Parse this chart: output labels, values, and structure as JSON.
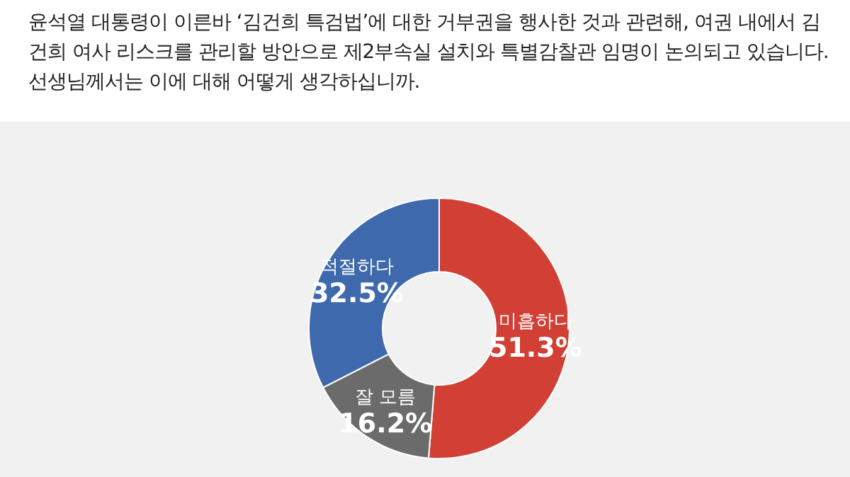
{
  "chart_data": {
    "type": "donut",
    "title": "윤석열 대통령이 이른바 ‘김건희 특검법’에 대한 거부권을 행사한 것과 관련해, 여권 내에서 김건희 여사 리스크를 관리할 방안으로 제2부속실 설치와 특별감찰관 임명이 논의되고 있습니다. 선생님께서는 이에 대해 어떻게 생각하십니까.",
    "categories": [
      "미흡하다",
      "잘 모름",
      "적절하다"
    ],
    "values": [
      51.3,
      16.2,
      32.5
    ],
    "value_labels": [
      "51.3%",
      "16.2%",
      "32.5%"
    ],
    "colors": [
      "#d13f35",
      "#6b6b6b",
      "#3e69ad"
    ],
    "legend": false
  }
}
